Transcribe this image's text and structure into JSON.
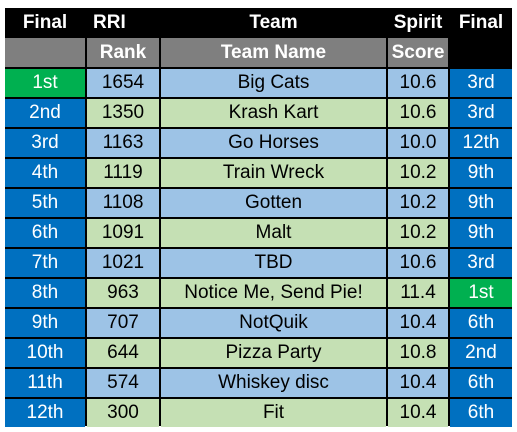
{
  "colors": {
    "background": "#000000",
    "subheader": "#7f7f7f",
    "place_blue": "#0070c0",
    "place_first": "#00b050",
    "row_blue": "#9dc3e6",
    "row_green": "#c5e0b4"
  },
  "header": {
    "final_left": "Final",
    "rri": "RRI",
    "team": "Team",
    "spirit": "Spirit",
    "final_right": "Final"
  },
  "subheader": {
    "final_left": "",
    "rank": "Rank",
    "team_name": "Team Name",
    "score": "Score",
    "final_right": ""
  },
  "rows": [
    {
      "final": "1st",
      "rank": "1654",
      "team": "Big Cats",
      "spirit": "10.6",
      "spirit_final": "3rd"
    },
    {
      "final": "2nd",
      "rank": "1350",
      "team": "Krash Kart",
      "spirit": "10.6",
      "spirit_final": "3rd"
    },
    {
      "final": "3rd",
      "rank": "1163",
      "team": "Go Horses",
      "spirit": "10.0",
      "spirit_final": "12th"
    },
    {
      "final": "4th",
      "rank": "1119",
      "team": "Train Wreck",
      "spirit": "10.2",
      "spirit_final": "9th"
    },
    {
      "final": "5th",
      "rank": "1108",
      "team": "Gotten",
      "spirit": "10.2",
      "spirit_final": "9th"
    },
    {
      "final": "6th",
      "rank": "1091",
      "team": "Malt",
      "spirit": "10.2",
      "spirit_final": "9th"
    },
    {
      "final": "7th",
      "rank": "1021",
      "team": "TBD",
      "spirit": "10.6",
      "spirit_final": "3rd"
    },
    {
      "final": "8th",
      "rank": "963",
      "team": "Notice Me, Send Pie!",
      "spirit": "11.4",
      "spirit_final": "1st"
    },
    {
      "final": "9th",
      "rank": "707",
      "team": "NotQuik",
      "spirit": "10.4",
      "spirit_final": "6th"
    },
    {
      "final": "10th",
      "rank": "644",
      "team": "Pizza Party",
      "spirit": "10.8",
      "spirit_final": "2nd"
    },
    {
      "final": "11th",
      "rank": "574",
      "team": "Whiskey disc",
      "spirit": "10.4",
      "spirit_final": "6th"
    },
    {
      "final": "12th",
      "rank": "300",
      "team": "Fit",
      "spirit": "10.4",
      "spirit_final": "6th"
    }
  ]
}
